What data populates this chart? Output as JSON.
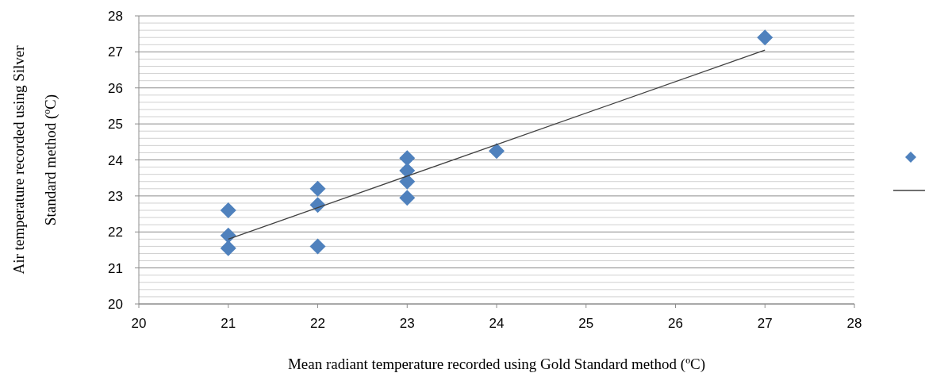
{
  "chart_data": {
    "type": "scatter",
    "xlabel": "Mean radiant  temperature recorded using Gold Standard method (ºC)",
    "ylabel": "Air temperature  recorded using Silver\nStandard method (ºC)",
    "xlim": [
      20,
      28
    ],
    "xticks": [
      20,
      21,
      22,
      23,
      24,
      25,
      26,
      27,
      28
    ],
    "ylim": [
      20,
      28
    ],
    "yticks": [
      20,
      {
        "value": 20.2,
        "label": null
      },
      {
        "value": 20.4,
        "label": null
      },
      {
        "value": 20.6,
        "label": null
      },
      {
        "value": 20.8,
        "label": null
      },
      21,
      {
        "value": 21.2,
        "label": null
      },
      {
        "value": 21.4,
        "label": null
      },
      {
        "value": 21.6,
        "label": null
      },
      {
        "value": 21.8,
        "label": null
      },
      22,
      {
        "value": 22.2,
        "label": null
      },
      {
        "value": 22.4,
        "label": null
      },
      {
        "value": 22.6,
        "label": null
      },
      {
        "value": 22.8,
        "label": null
      },
      23,
      {
        "value": 23.2,
        "label": null
      },
      {
        "value": 23.4,
        "label": null
      },
      {
        "value": 23.6,
        "label": null
      },
      {
        "value": 23.8,
        "label": null
      },
      24,
      {
        "value": 24.2,
        "label": null
      },
      {
        "value": 24.4,
        "label": null
      },
      {
        "value": 24.6,
        "label": null
      },
      {
        "value": 24.8,
        "label": null
      },
      25,
      {
        "value": 25.2,
        "label": null
      },
      {
        "value": 25.4,
        "label": null
      },
      {
        "value": 25.6,
        "label": null
      },
      {
        "value": 25.8,
        "label": null
      },
      26,
      {
        "value": 26.2,
        "label": null
      },
      {
        "value": 26.4,
        "label": null
      },
      {
        "value": 26.6,
        "label": null
      },
      {
        "value": 26.8,
        "label": null
      },
      27,
      {
        "value": 27.2,
        "label": null
      },
      {
        "value": 27.4,
        "label": null
      },
      {
        "value": 27.6,
        "label": null
      },
      {
        "value": 27.8,
        "label": null
      },
      28
    ],
    "grid": "y",
    "series": [
      {
        "marker": "diamond",
        "color": "#4f81bd",
        "x": [
          21,
          21,
          21,
          22,
          22,
          22,
          23,
          23,
          23,
          23,
          24,
          27
        ],
        "values": [
          22.6,
          21.9,
          21.55,
          23.2,
          22.75,
          21.6,
          24.05,
          23.7,
          23.4,
          22.95,
          24.25,
          27.4
        ]
      },
      {
        "type": "line",
        "color": "#404040",
        "x": [
          21,
          27
        ],
        "values": [
          21.8,
          27.05
        ]
      }
    ]
  }
}
